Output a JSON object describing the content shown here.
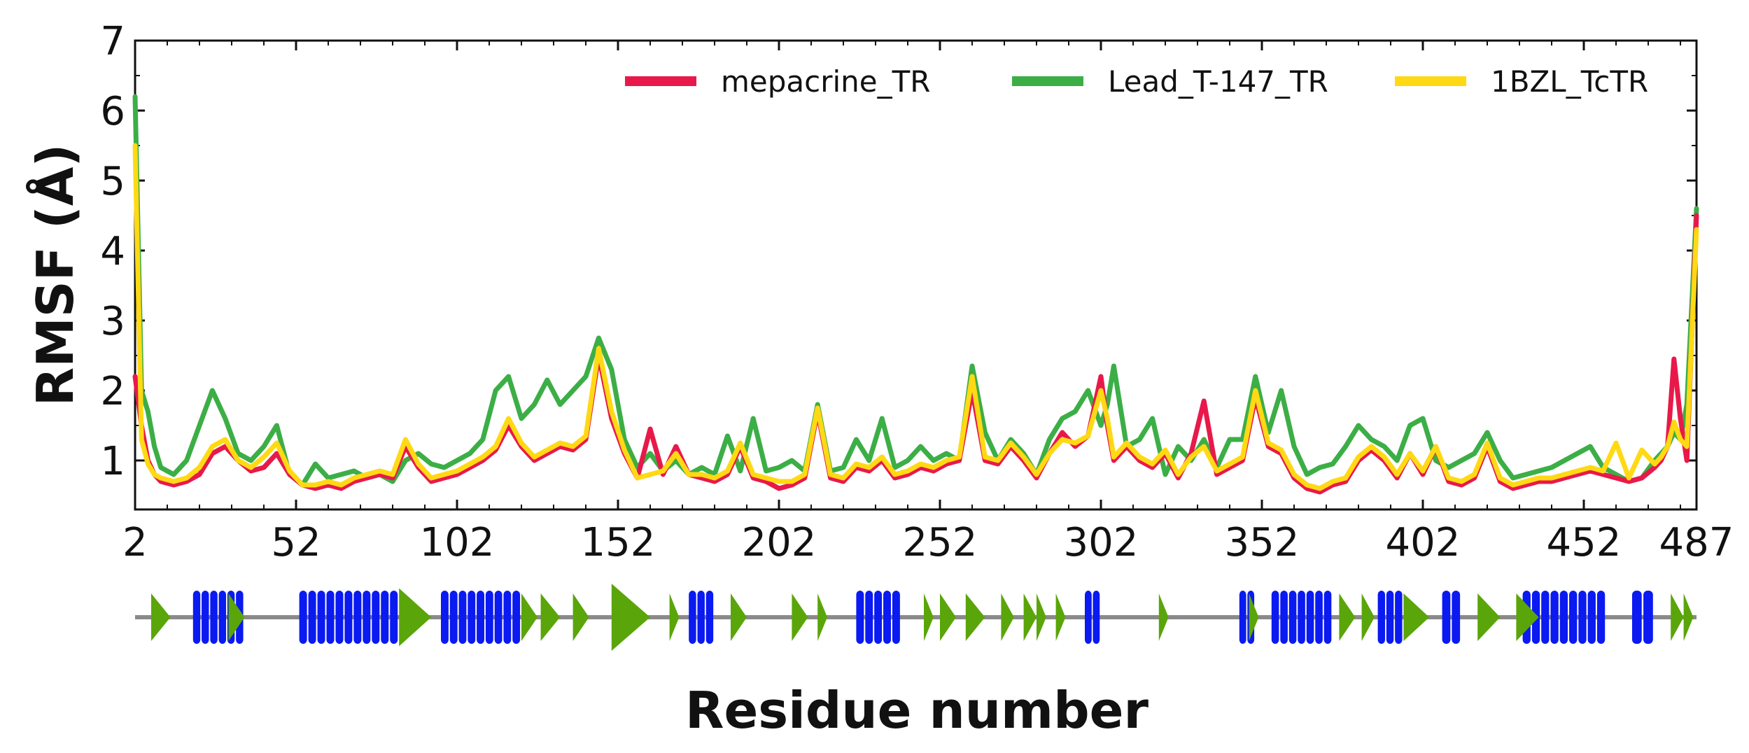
{
  "chart_data": {
    "type": "line",
    "title": "",
    "xlabel": "Residue number",
    "ylabel": "RMSF (Å)",
    "xlim": [
      2,
      487
    ],
    "ylim": [
      0.3,
      7
    ],
    "xticks": [
      "2",
      "52",
      "102",
      "152",
      "202",
      "252",
      "302",
      "352",
      "402",
      "452",
      "487"
    ],
    "yticks": [
      "1",
      "2",
      "3",
      "4",
      "5",
      "6",
      "7"
    ],
    "legend_position": "top-right",
    "series": [
      {
        "name": "mepacrine_TR",
        "color": "#e8194a",
        "x": [
          2,
          4,
          6,
          8,
          10,
          14,
          18,
          22,
          26,
          30,
          34,
          38,
          42,
          46,
          50,
          54,
          58,
          62,
          66,
          70,
          74,
          78,
          82,
          86,
          90,
          94,
          98,
          102,
          106,
          110,
          114,
          118,
          122,
          126,
          130,
          134,
          138,
          142,
          146,
          150,
          154,
          158,
          162,
          166,
          170,
          174,
          178,
          182,
          186,
          190,
          194,
          198,
          202,
          206,
          210,
          214,
          218,
          222,
          226,
          230,
          234,
          238,
          242,
          246,
          250,
          254,
          258,
          262,
          266,
          270,
          274,
          278,
          282,
          286,
          290,
          294,
          298,
          302,
          304,
          306,
          310,
          314,
          318,
          322,
          326,
          330,
          334,
          338,
          342,
          346,
          350,
          354,
          358,
          362,
          366,
          370,
          374,
          378,
          382,
          386,
          390,
          394,
          398,
          402,
          406,
          410,
          414,
          418,
          422,
          426,
          430,
          434,
          438,
          442,
          446,
          450,
          454,
          458,
          462,
          466,
          470,
          474,
          476,
          478,
          480,
          482,
          484,
          487
        ],
        "values": [
          2.2,
          1.5,
          1.0,
          0.8,
          0.7,
          0.65,
          0.7,
          0.8,
          1.1,
          1.2,
          1.0,
          0.85,
          0.9,
          1.1,
          0.8,
          0.65,
          0.6,
          0.65,
          0.6,
          0.7,
          0.75,
          0.8,
          0.75,
          1.2,
          0.9,
          0.7,
          0.75,
          0.8,
          0.9,
          1.0,
          1.15,
          1.5,
          1.2,
          1.0,
          1.1,
          1.2,
          1.15,
          1.3,
          2.5,
          1.6,
          1.1,
          0.75,
          1.45,
          0.8,
          1.2,
          0.8,
          0.75,
          0.7,
          0.8,
          1.2,
          0.75,
          0.7,
          0.6,
          0.65,
          0.75,
          1.7,
          0.75,
          0.7,
          0.9,
          0.85,
          1.0,
          0.75,
          0.8,
          0.9,
          0.85,
          0.95,
          1.0,
          2.0,
          1.0,
          0.95,
          1.2,
          1.0,
          0.75,
          1.1,
          1.4,
          1.2,
          1.35,
          2.2,
          1.5,
          1.0,
          1.2,
          1.0,
          0.9,
          1.1,
          0.75,
          1.1,
          1.85,
          0.8,
          0.9,
          1.0,
          1.9,
          1.2,
          1.1,
          0.75,
          0.6,
          0.55,
          0.65,
          0.7,
          1.0,
          1.15,
          1.0,
          0.75,
          1.1,
          0.8,
          1.2,
          0.7,
          0.65,
          0.75,
          1.2,
          0.7,
          0.6,
          0.65,
          0.7,
          0.7,
          0.75,
          0.8,
          0.85,
          0.8,
          0.75,
          0.7,
          0.75,
          0.9,
          1.0,
          1.2,
          2.45,
          1.6,
          1.0,
          4.5
        ]
      },
      {
        "name": "Lead_T-147_TR",
        "color": "#3cae46",
        "x": [
          2,
          4,
          6,
          8,
          10,
          14,
          18,
          22,
          26,
          30,
          34,
          38,
          42,
          46,
          50,
          54,
          58,
          62,
          66,
          70,
          74,
          78,
          82,
          86,
          90,
          94,
          98,
          102,
          106,
          110,
          114,
          118,
          122,
          126,
          130,
          134,
          138,
          142,
          146,
          150,
          154,
          158,
          162,
          166,
          170,
          174,
          178,
          182,
          186,
          190,
          194,
          198,
          202,
          206,
          210,
          214,
          218,
          222,
          226,
          230,
          234,
          238,
          242,
          246,
          250,
          254,
          258,
          262,
          266,
          270,
          274,
          278,
          282,
          286,
          290,
          294,
          298,
          302,
          304,
          306,
          310,
          314,
          318,
          322,
          326,
          330,
          334,
          338,
          342,
          346,
          350,
          354,
          358,
          362,
          366,
          370,
          374,
          378,
          382,
          386,
          390,
          394,
          398,
          402,
          406,
          410,
          414,
          418,
          422,
          426,
          430,
          434,
          438,
          442,
          446,
          450,
          454,
          458,
          462,
          466,
          470,
          474,
          476,
          478,
          480,
          482,
          484,
          487
        ],
        "values": [
          6.2,
          2.0,
          1.7,
          1.2,
          0.9,
          0.8,
          1.0,
          1.5,
          2.0,
          1.6,
          1.1,
          1.0,
          1.2,
          1.5,
          0.8,
          0.65,
          0.95,
          0.75,
          0.8,
          0.85,
          0.75,
          0.8,
          0.7,
          1.0,
          1.1,
          0.95,
          0.9,
          1.0,
          1.1,
          1.3,
          2.0,
          2.2,
          1.6,
          1.8,
          2.15,
          1.8,
          2.0,
          2.2,
          2.75,
          2.3,
          1.3,
          0.9,
          1.1,
          0.85,
          1.0,
          0.8,
          0.9,
          0.8,
          1.35,
          0.85,
          1.6,
          0.85,
          0.9,
          1.0,
          0.85,
          1.8,
          0.85,
          0.9,
          1.3,
          1.0,
          1.6,
          0.9,
          1.0,
          1.2,
          1.0,
          1.1,
          1.0,
          2.35,
          1.4,
          1.0,
          1.3,
          1.1,
          0.8,
          1.3,
          1.6,
          1.7,
          2.0,
          1.5,
          1.8,
          2.35,
          1.2,
          1.3,
          1.6,
          0.8,
          1.2,
          1.0,
          1.3,
          0.9,
          1.3,
          1.3,
          2.2,
          1.4,
          2.0,
          1.2,
          0.8,
          0.9,
          0.95,
          1.2,
          1.5,
          1.3,
          1.2,
          1.0,
          1.5,
          1.6,
          1.0,
          0.9,
          1.0,
          1.1,
          1.4,
          1.0,
          0.75,
          0.8,
          0.85,
          0.9,
          1.0,
          1.1,
          1.2,
          0.9,
          0.8,
          0.7,
          0.75,
          1.0,
          1.1,
          1.2,
          1.4,
          1.3,
          1.8,
          4.6
        ]
      },
      {
        "name": "1BZL_TcTR",
        "color": "#ffd914",
        "x": [
          2,
          4,
          6,
          8,
          10,
          14,
          18,
          22,
          26,
          30,
          34,
          38,
          42,
          46,
          50,
          54,
          58,
          62,
          66,
          70,
          74,
          78,
          82,
          86,
          90,
          94,
          98,
          102,
          106,
          110,
          114,
          118,
          122,
          126,
          130,
          134,
          138,
          142,
          146,
          150,
          154,
          158,
          162,
          166,
          170,
          174,
          178,
          182,
          186,
          190,
          194,
          198,
          202,
          206,
          210,
          214,
          218,
          222,
          226,
          230,
          234,
          238,
          242,
          246,
          250,
          254,
          258,
          262,
          266,
          270,
          274,
          278,
          282,
          286,
          290,
          294,
          298,
          302,
          304,
          306,
          310,
          314,
          318,
          322,
          326,
          330,
          334,
          338,
          342,
          346,
          350,
          354,
          358,
          362,
          366,
          370,
          374,
          378,
          382,
          386,
          390,
          394,
          398,
          402,
          406,
          410,
          414,
          418,
          422,
          426,
          430,
          434,
          438,
          442,
          446,
          450,
          454,
          458,
          462,
          466,
          470,
          474,
          476,
          478,
          480,
          482,
          484,
          487
        ],
        "values": [
          5.5,
          1.3,
          0.95,
          0.8,
          0.75,
          0.7,
          0.75,
          0.9,
          1.2,
          1.3,
          1.0,
          0.9,
          1.05,
          1.25,
          0.85,
          0.65,
          0.65,
          0.7,
          0.65,
          0.75,
          0.8,
          0.85,
          0.8,
          1.3,
          0.95,
          0.75,
          0.8,
          0.85,
          0.95,
          1.05,
          1.2,
          1.6,
          1.25,
          1.05,
          1.15,
          1.25,
          1.2,
          1.35,
          2.6,
          1.7,
          1.15,
          0.75,
          0.8,
          0.85,
          1.1,
          0.8,
          0.8,
          0.75,
          0.85,
          1.25,
          0.8,
          0.75,
          0.7,
          0.7,
          0.8,
          1.75,
          0.8,
          0.75,
          0.95,
          0.9,
          1.05,
          0.8,
          0.85,
          0.95,
          0.9,
          1.0,
          1.05,
          2.2,
          1.05,
          1.0,
          1.25,
          1.05,
          0.8,
          1.1,
          1.3,
          1.25,
          1.35,
          2.0,
          1.6,
          1.05,
          1.25,
          1.05,
          0.95,
          1.15,
          0.8,
          1.05,
          1.2,
          0.85,
          0.95,
          1.05,
          2.0,
          1.25,
          1.15,
          0.8,
          0.65,
          0.6,
          0.7,
          0.75,
          1.05,
          1.2,
          1.05,
          0.8,
          1.1,
          0.85,
          1.2,
          0.75,
          0.7,
          0.8,
          1.25,
          0.75,
          0.65,
          0.7,
          0.75,
          0.75,
          0.8,
          0.85,
          0.9,
          0.85,
          1.25,
          0.75,
          1.15,
          0.95,
          1.05,
          1.2,
          1.55,
          1.3,
          1.2,
          4.3
        ]
      }
    ],
    "secondary_structure": {
      "helix_color": "#0a1af0",
      "strand_color": "#5aa50a",
      "helices": [
        [
          20,
          36
        ],
        [
          53,
          84
        ],
        [
          97,
          122
        ],
        [
          174,
          182
        ],
        [
          226,
          240
        ],
        [
          297,
          302
        ],
        [
          345,
          350
        ],
        [
          355,
          374
        ],
        [
          388,
          396
        ],
        [
          408,
          414
        ],
        [
          433,
          459
        ],
        [
          467,
          474
        ]
      ],
      "strands": [
        [
          7,
          13
        ],
        [
          31,
          36
        ],
        [
          84,
          94
        ],
        [
          122,
          127
        ],
        [
          128,
          134
        ],
        [
          138,
          143
        ],
        [
          150,
          162
        ],
        [
          168,
          171
        ],
        [
          187,
          192
        ],
        [
          206,
          211
        ],
        [
          214,
          217
        ],
        [
          247,
          250
        ],
        [
          252,
          257
        ],
        [
          260,
          266
        ],
        [
          271,
          275
        ],
        [
          278,
          282
        ],
        [
          282,
          285
        ],
        [
          288,
          291
        ],
        [
          320,
          323
        ],
        [
          348,
          351
        ],
        [
          376,
          381
        ],
        [
          383,
          387
        ],
        [
          396,
          404
        ],
        [
          419,
          426
        ],
        [
          431,
          438
        ],
        [
          479,
          483
        ],
        [
          483,
          486
        ]
      ]
    }
  }
}
